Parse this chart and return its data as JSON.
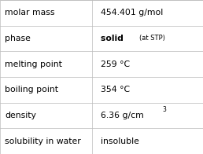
{
  "rows": [
    {
      "label": "molar mass",
      "value": "454.401 g/mol",
      "type": "plain"
    },
    {
      "label": "phase",
      "value": "solid",
      "value_extra": "(at STP)",
      "type": "phase"
    },
    {
      "label": "melting point",
      "value": "259 °C",
      "type": "plain"
    },
    {
      "label": "boiling point",
      "value": "354 °C",
      "type": "plain"
    },
    {
      "label": "density",
      "value": "6.36 g/cm",
      "superscript": "3",
      "type": "super"
    },
    {
      "label": "solubility in water",
      "value": "insoluble",
      "type": "plain"
    }
  ],
  "col_split": 0.455,
  "bg_color": "#ffffff",
  "border_color": "#bbbbbb",
  "text_color": "#000000",
  "label_fontsize": 7.8,
  "value_fontsize": 7.8,
  "extra_fontsize": 6.0,
  "super_fontsize": 5.5,
  "fig_width": 2.58,
  "fig_height": 1.96,
  "dpi": 100
}
